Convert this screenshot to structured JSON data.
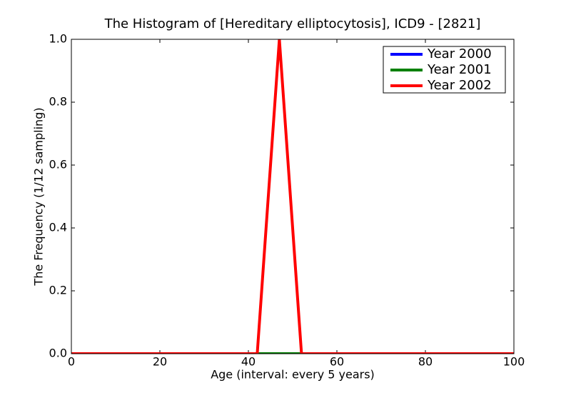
{
  "chart_data": {
    "type": "line",
    "title": "The Histogram of [Hereditary elliptocytosis], ICD9 - [2821]",
    "x_label": "Age (interval: every 5 years)",
    "y_label": "The Frequency (1/12 sampling)",
    "x": [
      0,
      2,
      7,
      12,
      17,
      22,
      27,
      32,
      37,
      42,
      47,
      52,
      57,
      62,
      67,
      72,
      77,
      82,
      87,
      92,
      97,
      100
    ],
    "series": [
      {
        "name": "Year 2000",
        "color": "#0000ff",
        "values": [
          0,
          0,
          0,
          0,
          0,
          0,
          0,
          0,
          0,
          0,
          0,
          0,
          0,
          0,
          0,
          0,
          0,
          0,
          0,
          0,
          0,
          0
        ]
      },
      {
        "name": "Year 2001",
        "color": "#008000",
        "values": [
          0,
          0,
          0,
          0,
          0,
          0,
          0,
          0,
          0,
          0,
          0,
          0,
          0,
          0,
          0,
          0,
          0,
          0,
          0,
          0,
          0,
          0
        ]
      },
      {
        "name": "Year 2002",
        "color": "#ff0000",
        "values": [
          0,
          0,
          0,
          0,
          0,
          0,
          0,
          0,
          0,
          0,
          1,
          0,
          0,
          0,
          0,
          0,
          0,
          0,
          0,
          0,
          0,
          0
        ]
      }
    ],
    "xlim": [
      0,
      100
    ],
    "xticks": [
      0,
      20,
      40,
      60,
      80,
      100
    ],
    "ylim": [
      0,
      1
    ],
    "yticks": [
      {
        "value": 0,
        "label": "0.0"
      },
      0.2,
      0.4,
      0.6,
      0.8,
      {
        "value": 1,
        "label": "1.0"
      }
    ],
    "legend": "upper right"
  }
}
